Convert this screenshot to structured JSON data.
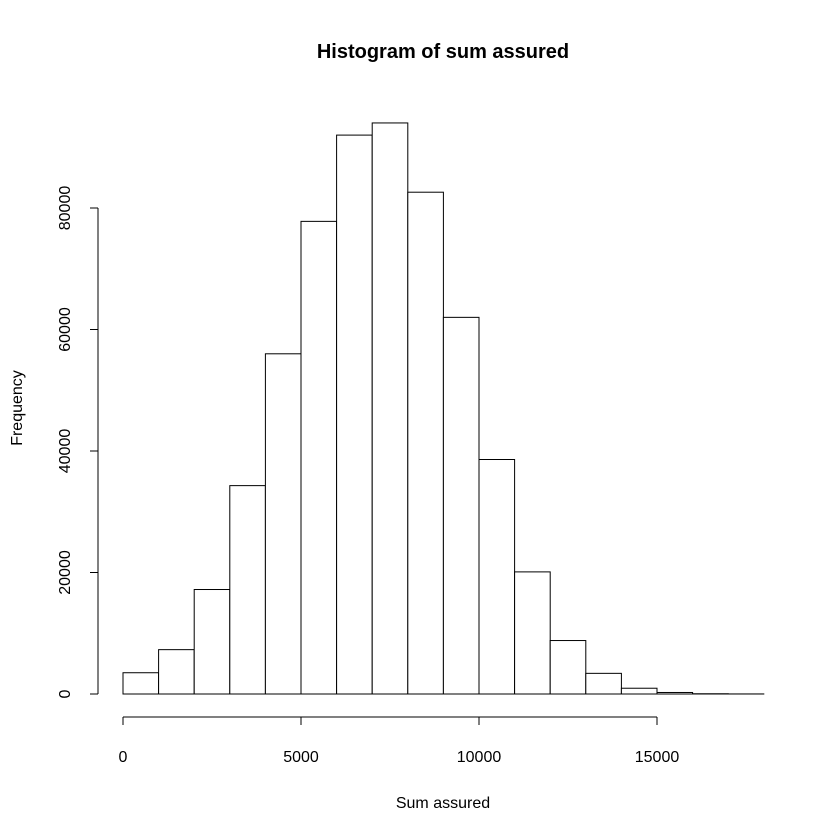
{
  "chart_data": {
    "type": "histogram",
    "title": "Histogram of sum assured",
    "xlabel": "Sum assured",
    "ylabel": "Frequency",
    "bin_edges": [
      0,
      1000,
      2000,
      3000,
      4000,
      5000,
      6000,
      7000,
      8000,
      9000,
      10000,
      11000,
      12000,
      13000,
      14000,
      15000,
      16000,
      17000,
      18000
    ],
    "values": [
      3500,
      7300,
      17200,
      34300,
      56000,
      77800,
      92000,
      94000,
      82600,
      62000,
      38600,
      20100,
      8800,
      3400,
      950,
      250,
      40,
      10
    ],
    "x_ticks": [
      0,
      5000,
      10000,
      15000
    ],
    "x_tick_labels": [
      "0",
      "5000",
      "10000",
      "15000"
    ],
    "y_ticks": [
      0,
      20000,
      40000,
      60000,
      80000
    ],
    "y_tick_labels": [
      "0",
      "20000",
      "40000",
      "60000",
      "80000"
    ],
    "xlim": [
      0,
      18000
    ],
    "ylim": [
      0,
      94000
    ],
    "bar_fill": "#ffffff",
    "bar_stroke": "#000000",
    "grid": false
  }
}
